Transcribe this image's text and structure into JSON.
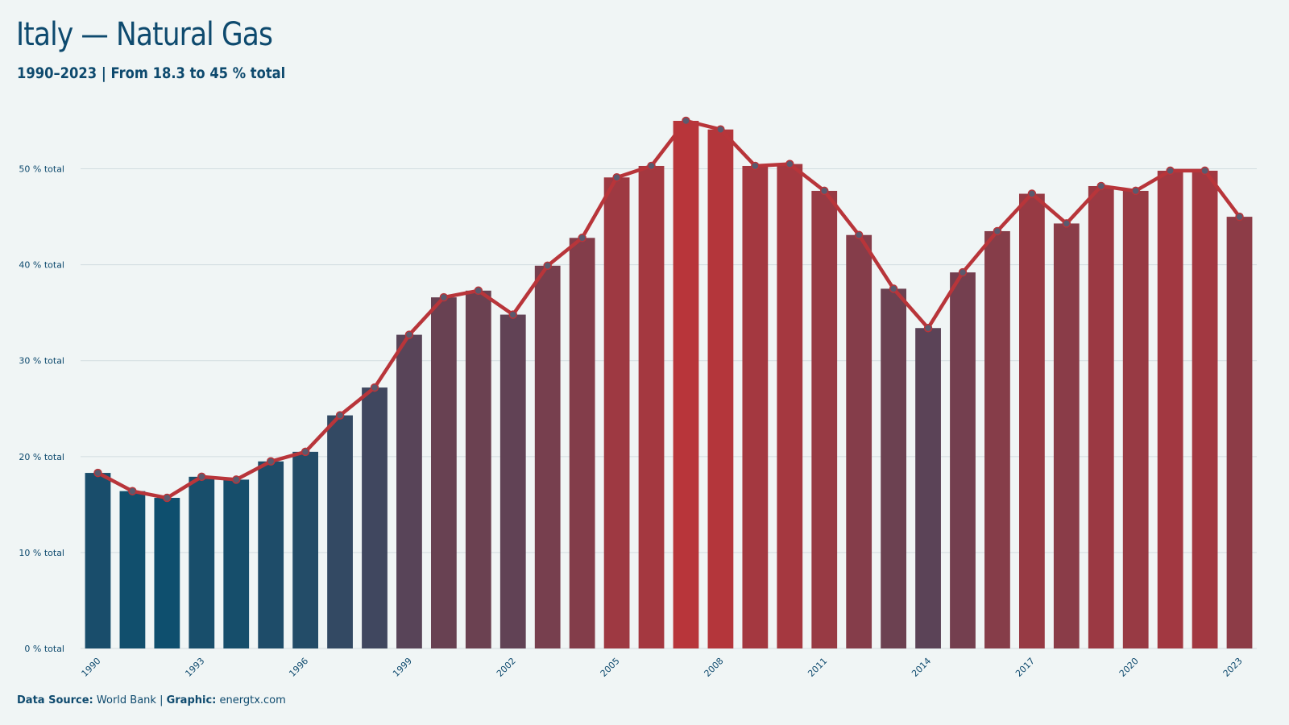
{
  "title": "Italy — Natural Gas",
  "subtitle": "1990–2023 | From 18.3 to 45 % total",
  "footer": {
    "source_label": "Data Source:",
    "source_value": " World Bank | ",
    "graphic_label": "Graphic:",
    "graphic_value": " energtx.com"
  },
  "colors": {
    "background": "#f0f5f5",
    "text": "#0e4a6e",
    "line": "#b8353a",
    "bar_low": "#0e4f6e",
    "bar_high": "#b8353a",
    "marker": "#5a5a6e",
    "grid": "#d3dde0"
  },
  "chart_data": {
    "type": "bar",
    "title": "Italy — Natural Gas",
    "subtitle": "1990–2023 | From 18.3 to 45 % total",
    "ylim": [
      0,
      55
    ],
    "yticks": [
      "0 % total",
      "10 % total",
      "20 % total",
      "30 % total",
      "40 % total",
      "50 % total"
    ],
    "ytick_values": [
      0,
      10,
      20,
      30,
      40,
      50
    ],
    "xtick_labels": [
      "1990",
      "1993",
      "1996",
      "1999",
      "2002",
      "2005",
      "2008",
      "2011",
      "2014",
      "2017",
      "2020",
      "2023"
    ],
    "grid": true,
    "overlay": "line-with-markers",
    "categories": [
      "1990",
      "1991",
      "1992",
      "1993",
      "1994",
      "1995",
      "1996",
      "1997",
      "1998",
      "1999",
      "2000",
      "2001",
      "2002",
      "2003",
      "2004",
      "2005",
      "2006",
      "2007",
      "2008",
      "2009",
      "2010",
      "2011",
      "2012",
      "2013",
      "2014",
      "2015",
      "2016",
      "2017",
      "2018",
      "2019",
      "2020",
      "2021",
      "2022",
      "2023"
    ],
    "values": [
      18.3,
      16.4,
      15.7,
      17.9,
      17.6,
      19.5,
      20.5,
      24.3,
      27.2,
      32.7,
      36.6,
      37.3,
      34.8,
      39.9,
      42.8,
      49.1,
      50.3,
      55.0,
      54.1,
      50.3,
      50.5,
      47.7,
      43.1,
      37.5,
      33.4,
      39.2,
      43.5,
      47.4,
      44.3,
      48.2,
      47.7,
      49.8,
      49.8,
      45.0
    ]
  }
}
